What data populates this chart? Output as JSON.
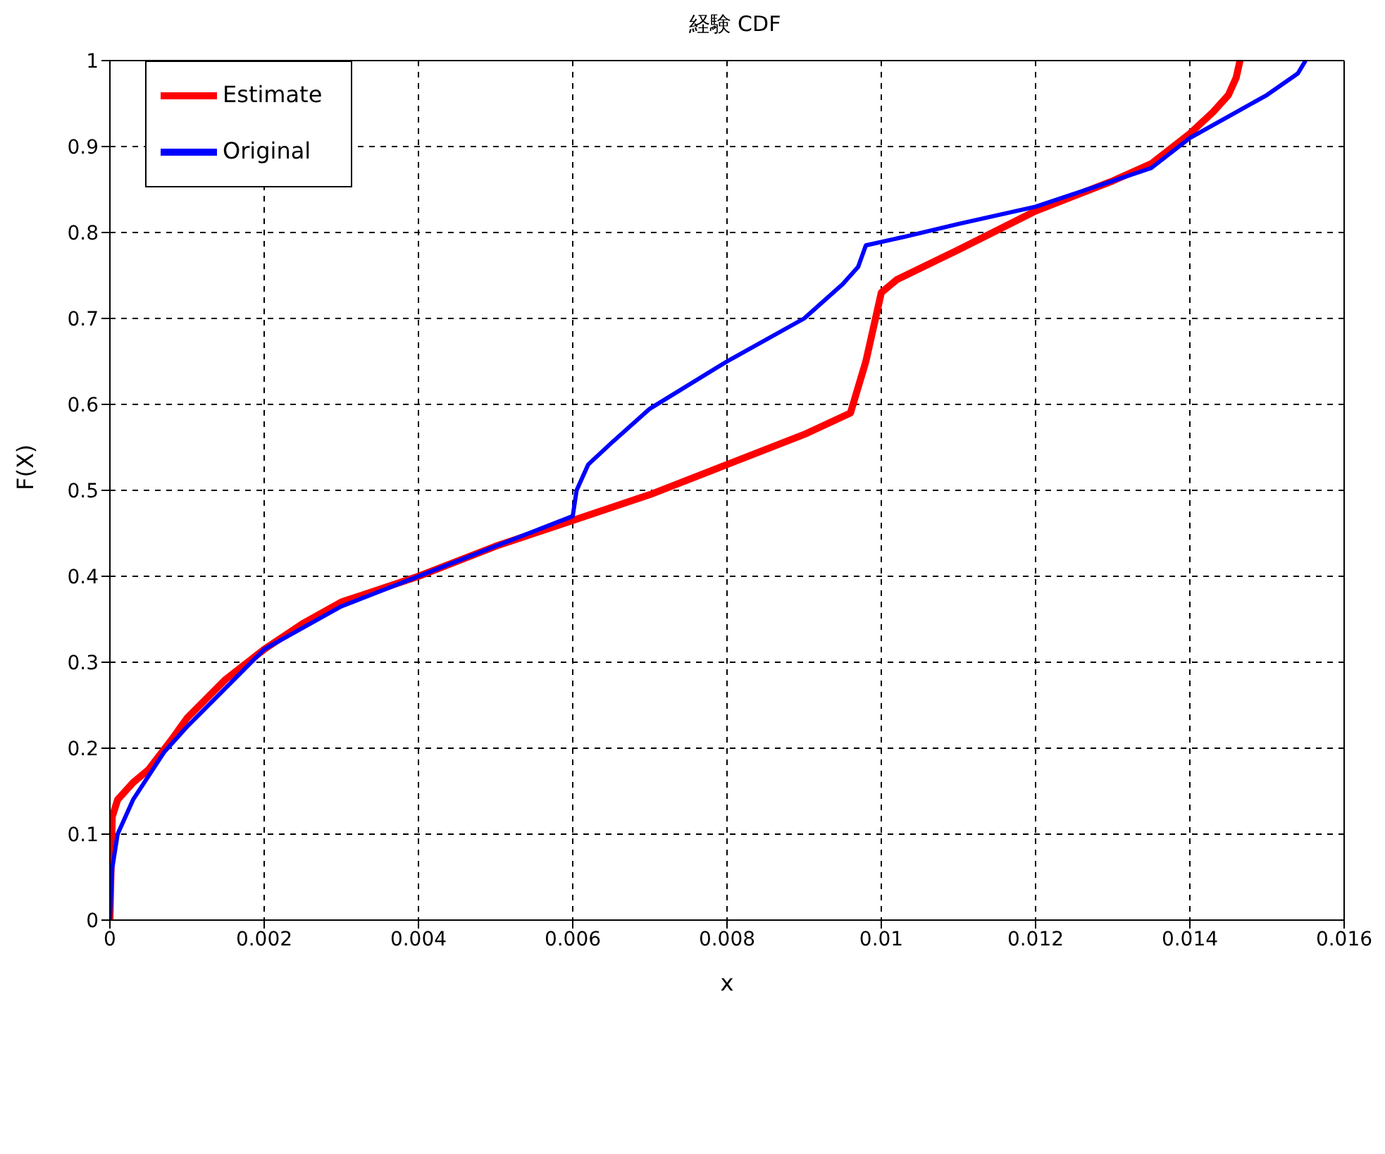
{
  "chart_data": {
    "type": "line",
    "title": "経験 CDF",
    "xlabel": "x",
    "ylabel": "F(X)",
    "xlim": [
      0,
      0.016
    ],
    "xticks": [
      0,
      0.002,
      0.004,
      0.006,
      0.008,
      0.01,
      0.012,
      0.014,
      0.016
    ],
    "ylim": [
      0,
      1
    ],
    "yticks": [
      0,
      0.1,
      0.2,
      0.3,
      0.4,
      0.5,
      0.6,
      0.7,
      0.8,
      0.9,
      1
    ],
    "grid": true,
    "legend": "top left",
    "line_style": "solid",
    "series": [
      {
        "name": "Estimate",
        "color": "#ff0000",
        "x": [
          0,
          3e-05,
          0.0001,
          0.0003,
          0.0005,
          0.0008,
          0.001,
          0.0015,
          0.002,
          0.0025,
          0.003,
          0.004,
          0.005,
          0.006,
          0.007,
          0.008,
          0.009,
          0.0096,
          0.0098,
          0.01,
          0.0102,
          0.011,
          0.012,
          0.013,
          0.0135,
          0.014,
          0.0143,
          0.0145,
          0.0146,
          0.01465
        ],
        "values": [
          0,
          0.12,
          0.14,
          0.16,
          0.175,
          0.21,
          0.235,
          0.28,
          0.315,
          0.345,
          0.37,
          0.4,
          0.435,
          0.465,
          0.495,
          0.53,
          0.565,
          0.59,
          0.65,
          0.73,
          0.745,
          0.78,
          0.825,
          0.86,
          0.88,
          0.915,
          0.94,
          0.96,
          0.98,
          1
        ]
      },
      {
        "name": "Original",
        "color": "#0000ff",
        "x": [
          0,
          3e-05,
          0.0001,
          0.0003,
          0.0007,
          0.001,
          0.0015,
          0.002,
          0.003,
          0.004,
          0.005,
          0.006,
          0.00605,
          0.0062,
          0.0065,
          0.007,
          0.008,
          0.009,
          0.0095,
          0.0097,
          0.0098,
          0.0103,
          0.011,
          0.012,
          0.013,
          0.0135,
          0.014,
          0.0145,
          0.015,
          0.0154,
          0.0155
        ],
        "values": [
          0,
          0.06,
          0.1,
          0.14,
          0.195,
          0.225,
          0.27,
          0.315,
          0.365,
          0.4,
          0.435,
          0.47,
          0.5,
          0.53,
          0.555,
          0.595,
          0.65,
          0.7,
          0.74,
          0.76,
          0.785,
          0.795,
          0.81,
          0.83,
          0.86,
          0.875,
          0.91,
          0.935,
          0.96,
          0.985,
          1
        ]
      }
    ]
  }
}
